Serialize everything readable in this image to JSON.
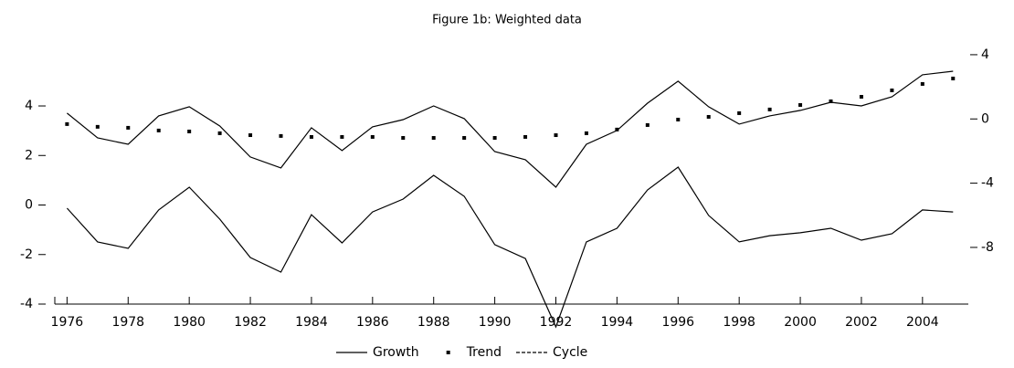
{
  "chart_data": {
    "type": "line",
    "title": "Figure 1b: Weighted data",
    "x": [
      1976,
      1977,
      1978,
      1979,
      1980,
      1981,
      1982,
      1983,
      1984,
      1985,
      1986,
      1987,
      1988,
      1989,
      1990,
      1991,
      1992,
      1993,
      1994,
      1995,
      1996,
      1997,
      1998,
      1999,
      2000,
      2001,
      2002,
      2003,
      2004,
      2005
    ],
    "xlim": [
      1975.6,
      2005.5
    ],
    "xticks": [
      1976,
      1978,
      1980,
      1982,
      1984,
      1986,
      1988,
      1990,
      1992,
      1994,
      1996,
      1998,
      2000,
      2002,
      2004
    ],
    "ylim": [
      -4,
      6.25
    ],
    "yticks": [
      -4,
      -2,
      0,
      2,
      4
    ],
    "y2lim": [
      -11.53,
      4.28
    ],
    "y2ticks": [
      -8,
      -4,
      0,
      4
    ],
    "series": [
      {
        "name": "Growth",
        "color": "#000000",
        "marker": "line",
        "axis": "y2",
        "values": [
          0.36,
          -1.18,
          -1.58,
          0.19,
          0.76,
          -0.44,
          -2.37,
          -3.05,
          -0.55,
          -1.97,
          -0.49,
          -0.04,
          0.81,
          0.02,
          -2.03,
          -2.54,
          -4.25,
          -1.58,
          -0.72,
          0.98,
          2.35,
          0.76,
          -0.32,
          0.19,
          0.53,
          1.04,
          0.81,
          1.38,
          2.75,
          2.97
        ]
      },
      {
        "name": "Trend",
        "color": "#000000",
        "marker": "dot",
        "axis": "y2",
        "values": [
          -0.32,
          -0.49,
          -0.55,
          -0.72,
          -0.78,
          -0.89,
          -1.01,
          -1.06,
          -1.12,
          -1.12,
          -1.12,
          -1.18,
          -1.18,
          -1.18,
          -1.18,
          -1.12,
          -1.01,
          -0.89,
          -0.66,
          -0.38,
          -0.04,
          0.13,
          0.36,
          0.59,
          0.87,
          1.1,
          1.38,
          1.78,
          2.18,
          2.52
        ]
      },
      {
        "name": "Cycle",
        "color": "#000000",
        "marker": "line",
        "legend_dash": true,
        "values": [
          -0.13,
          -1.49,
          -1.75,
          -0.2,
          0.72,
          -0.57,
          -2.12,
          -2.71,
          -0.39,
          -1.53,
          -0.28,
          0.24,
          1.2,
          0.35,
          -1.6,
          -2.16,
          -4.92,
          -1.49,
          -0.94,
          0.61,
          1.53,
          -0.42,
          -1.49,
          -1.24,
          -1.12,
          -0.94,
          -1.42,
          -1.16,
          -0.2,
          -0.28
        ]
      }
    ]
  }
}
